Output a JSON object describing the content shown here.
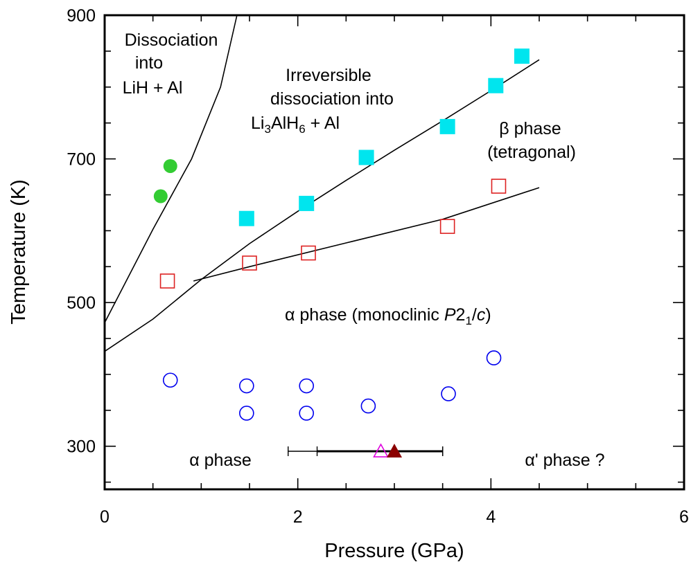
{
  "chart_data": {
    "type": "scatter",
    "title": "",
    "xlabel": "Pressure (GPa)",
    "ylabel": "Temperature (K)",
    "xlim": [
      0,
      6
    ],
    "ylim": [
      240,
      900
    ],
    "x_ticks": [
      0,
      2,
      4,
      6
    ],
    "y_ticks": [
      300,
      500,
      700,
      900
    ],
    "x_minor_step": 0.5,
    "y_minor_step": 50,
    "grid": false,
    "series": [
      {
        "marker": "filled-circle",
        "color": "#33cc33",
        "points": [
          [
            0.58,
            648
          ],
          [
            0.68,
            690
          ]
        ]
      },
      {
        "marker": "filled-square",
        "color": "#00e5ee",
        "points": [
          [
            1.47,
            617
          ],
          [
            2.09,
            638
          ],
          [
            2.71,
            702
          ],
          [
            3.55,
            745
          ],
          [
            4.05,
            802
          ],
          [
            4.32,
            843
          ]
        ]
      },
      {
        "marker": "open-square",
        "color": "#dd2222",
        "points": [
          [
            0.65,
            530
          ],
          [
            1.5,
            555
          ],
          [
            2.11,
            569
          ],
          [
            3.55,
            606
          ],
          [
            4.08,
            662
          ]
        ]
      },
      {
        "marker": "open-circle",
        "color": "#0000ee",
        "points": [
          [
            0.68,
            392
          ],
          [
            1.47,
            384
          ],
          [
            1.47,
            346
          ],
          [
            2.09,
            384
          ],
          [
            2.09,
            346
          ],
          [
            2.73,
            356
          ],
          [
            3.56,
            373
          ],
          [
            4.03,
            423
          ]
        ]
      },
      {
        "marker": "open-triangle",
        "color": "#dd00dd",
        "points": [
          [
            2.86,
            292
          ]
        ]
      },
      {
        "marker": "filled-triangle",
        "color": "#8b0000",
        "points": [
          [
            3.0,
            292
          ]
        ]
      }
    ],
    "error_bars": [
      {
        "y": 293,
        "xmin": 1.9,
        "xmax": 3.5,
        "weight": "thin"
      },
      {
        "y": 293,
        "xmin": 2.2,
        "xmax": 3.5,
        "weight": "thick"
      }
    ],
    "boundary_lines": [
      {
        "label": "dissociation-into-LiH",
        "points": [
          [
            0,
            472
          ],
          [
            0.5,
            602
          ],
          [
            0.9,
            700
          ],
          [
            1.2,
            800
          ],
          [
            1.37,
            900
          ]
        ]
      },
      {
        "label": "irreversible-dissociation",
        "points": [
          [
            0,
            432
          ],
          [
            0.5,
            477
          ],
          [
            1.0,
            532
          ],
          [
            1.5,
            582
          ],
          [
            2.0,
            627
          ],
          [
            2.5,
            670
          ],
          [
            3.0,
            712
          ],
          [
            3.5,
            753
          ],
          [
            4.0,
            795
          ],
          [
            4.5,
            838
          ]
        ]
      },
      {
        "label": "alpha-beta-boundary",
        "points": [
          [
            0.92,
            530
          ],
          [
            1.5,
            550
          ],
          [
            2.5,
            583
          ],
          [
            3.5,
            616
          ],
          [
            4.5,
            660
          ]
        ]
      }
    ],
    "annotations": {
      "dissociation": [
        "Dissociation",
        "into",
        "LiH + Al"
      ],
      "irreversible_line1": "Irreversible",
      "irreversible_line2": "dissociation into",
      "irreversible_line3": {
        "a": "Li",
        "b": "3",
        "c": "AlH",
        "d": "6",
        "e": " + Al"
      },
      "beta_line1": "β phase",
      "beta_line2": "(tetragonal)",
      "alpha_main": {
        "a": "α phase (monoclinic ",
        "b": "P",
        "c": "2",
        "d": "1",
        "e": "/",
        "f": "c",
        "g": ")"
      },
      "alpha_low": "α phase",
      "alpha_prime": "α' phase ?"
    }
  }
}
